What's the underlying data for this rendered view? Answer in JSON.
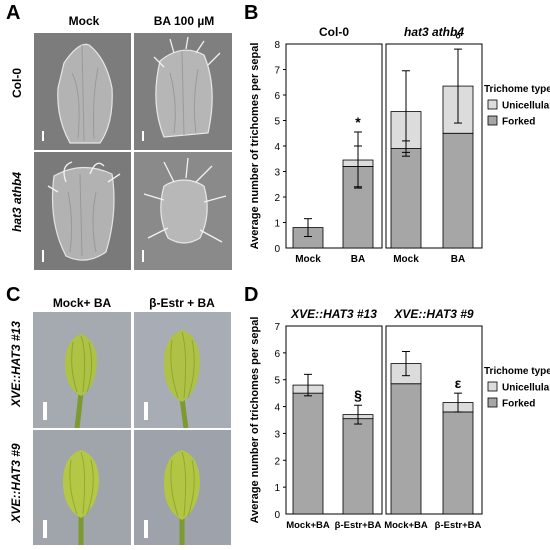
{
  "panel_a": {
    "letter": "A",
    "col_headers": [
      "Mock",
      "BA 100 µM"
    ],
    "row_labels": [
      "Col-0",
      "hat3 athb4"
    ]
  },
  "panel_c": {
    "letter": "C",
    "col_headers": [
      "Mock+ BA",
      "β-Estr + BA"
    ],
    "row_labels": [
      "XVE::HAT3 #13",
      "XVE::HAT3 #9"
    ]
  },
  "chart_data": [
    {
      "panel": "B",
      "type": "bar",
      "stacked": true,
      "group_titles": [
        "Col-0",
        "hat3 athb4"
      ],
      "categories": [
        "Mock",
        "BA",
        "Mock",
        "BA"
      ],
      "ylabel": "Average number of trichomes per sepal",
      "ylim": [
        0,
        8
      ],
      "yticks": [
        "0",
        "1",
        "2",
        "3",
        "4",
        "5",
        "6",
        "7",
        "8"
      ],
      "legend_title": "Trichome type",
      "legend_position": "right",
      "series": [
        {
          "name": "Forked",
          "color": "#a6a6a6",
          "values": [
            0.8,
            3.2,
            3.9,
            4.5
          ],
          "errors": [
            0.35,
            0.8,
            0.3,
            0.0
          ]
        },
        {
          "name": "Unicellular",
          "color": "#dcdcdc",
          "values": [
            0.0,
            0.25,
            1.45,
            1.85
          ],
          "errors": [
            0.0,
            1.1,
            1.6,
            1.45
          ]
        }
      ],
      "markers": [
        "",
        "*",
        "",
        "°"
      ],
      "grid": false
    },
    {
      "panel": "D",
      "type": "bar",
      "stacked": true,
      "group_titles": [
        "XVE::HAT3 #13",
        "XVE::HAT3 #9"
      ],
      "categories": [
        "Mock+BA",
        "β-Estr+BA",
        "Mock+BA",
        "β-Estr+BA"
      ],
      "ylabel": "Average number of trichomes per sepal",
      "ylim": [
        0,
        7
      ],
      "yticks": [
        "0",
        "1",
        "2",
        "3",
        "4",
        "5",
        "6",
        "7"
      ],
      "legend_title": "Trichome type",
      "legend_position": "right",
      "series": [
        {
          "name": "Forked",
          "color": "#a6a6a6",
          "values": [
            4.5,
            3.55,
            4.85,
            3.8
          ],
          "errors": [
            0.0,
            0.0,
            0.0,
            0.0
          ]
        },
        {
          "name": "Unicellular",
          "color": "#dcdcdc",
          "values": [
            0.3,
            0.15,
            0.75,
            0.35
          ],
          "errors": [
            0.4,
            0.35,
            0.45,
            0.35
          ]
        }
      ],
      "markers": [
        "",
        "§",
        "",
        "ε"
      ],
      "grid": false
    }
  ],
  "colors": {
    "sem_bg": "#7d7d7d",
    "photo_bg": "#a6aab2",
    "sepal_green": "#a9c040",
    "bar_forked": "#a6a6a6",
    "bar_unicellular": "#dcdcdc"
  }
}
